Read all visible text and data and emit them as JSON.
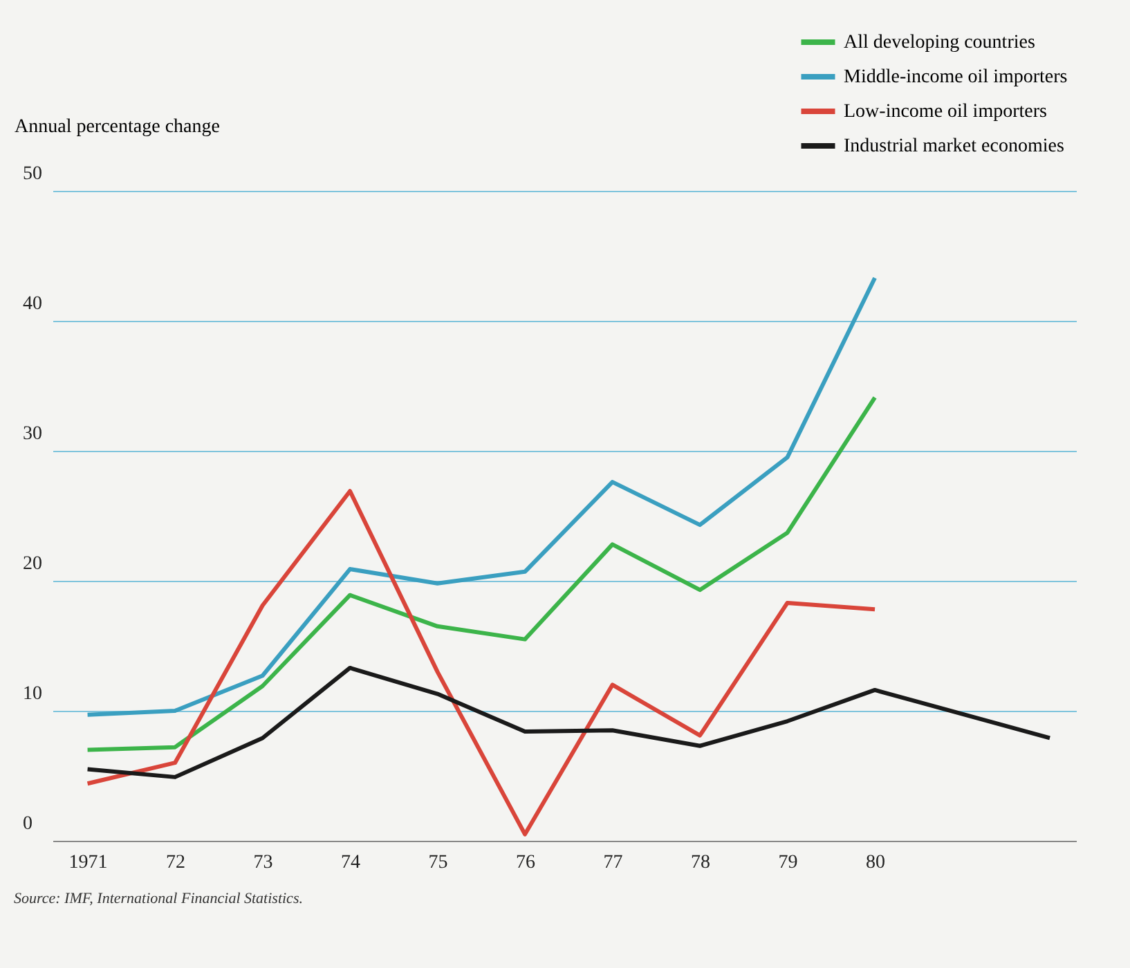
{
  "chart_data": {
    "type": "line",
    "ylabel": "Annual percentage change",
    "x": [
      1971,
      1972,
      1973,
      1974,
      1975,
      1976,
      1977,
      1978,
      1979,
      1980
    ],
    "series": [
      {
        "name": "All developing countries",
        "color": "#3cb44a",
        "values": [
          7.0,
          7.2,
          11.9,
          18.9,
          16.5,
          15.5,
          22.8,
          19.3,
          23.7,
          34.1
        ]
      },
      {
        "name": "Middle-income oil importers",
        "color": "#3a9fc0",
        "values": [
          9.7,
          10.0,
          12.7,
          20.9,
          19.8,
          20.7,
          27.6,
          24.3,
          29.5,
          43.3
        ]
      },
      {
        "name": "Low-income oil importers",
        "color": "#d9453a",
        "values": [
          4.4,
          6.0,
          18.1,
          26.9,
          13.0,
          0.5,
          12.0,
          8.1,
          18.3,
          17.8
        ]
      },
      {
        "name": "Industrial market economies",
        "color": "#1a1a1a",
        "x": [
          1971,
          1972,
          1973,
          1974,
          1975,
          1976,
          1977,
          1978,
          1979,
          1980,
          1982
        ],
        "values": [
          5.5,
          4.9,
          7.9,
          13.3,
          11.3,
          8.4,
          8.5,
          7.3,
          9.2,
          11.6,
          7.9
        ]
      }
    ],
    "xlim": [
      1970.6,
      1982.3
    ],
    "xticks": [
      1971,
      {
        "value": 1972,
        "label": "72"
      },
      {
        "value": 1973,
        "label": "73"
      },
      {
        "value": 1974,
        "label": "74"
      },
      {
        "value": 1975,
        "label": "75"
      },
      {
        "value": 1976,
        "label": "76"
      },
      {
        "value": 1977,
        "label": "77"
      },
      {
        "value": 1978,
        "label": "78"
      },
      {
        "value": 1979,
        "label": "79"
      },
      {
        "value": 1980,
        "label": "80"
      }
    ],
    "ylim": [
      0,
      50
    ],
    "yticks": [
      0,
      10,
      20,
      30,
      40,
      50
    ],
    "grid": "y",
    "legend": "top right",
    "marker": "none",
    "line_style": "solid",
    "annotations": [
      "Source: IMF, International Financial Statistics."
    ]
  }
}
